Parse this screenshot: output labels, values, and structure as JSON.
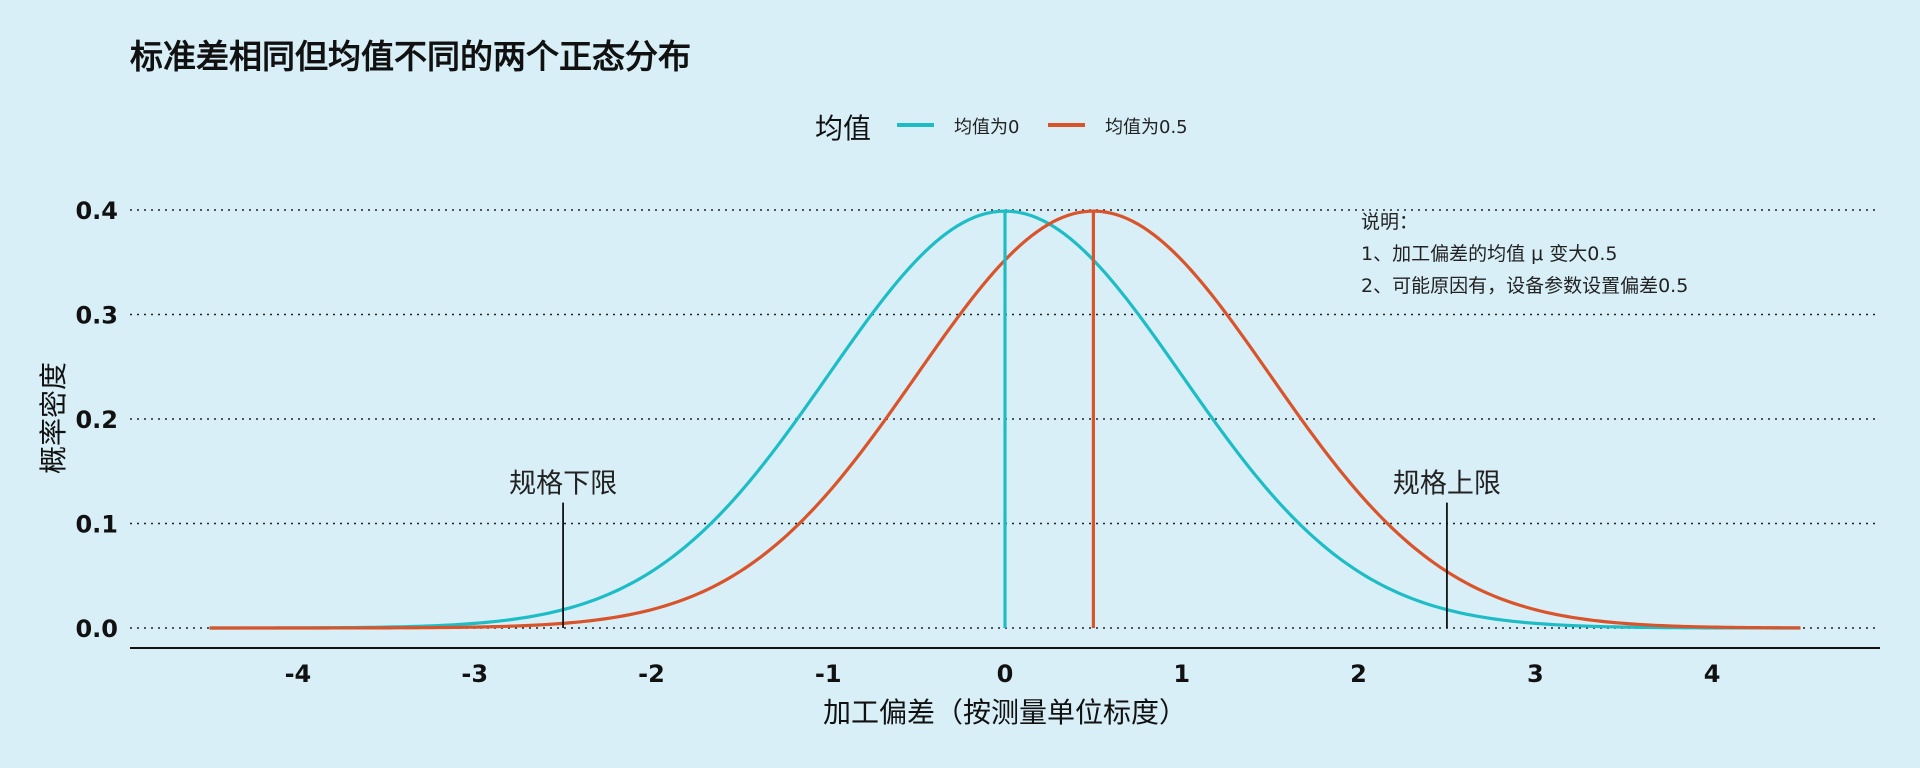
{
  "chart_data": {
    "type": "line",
    "title": "标准差相同但均值不同的两个正态分布",
    "xlabel": "加工偏差（按测量单位标度）",
    "ylabel": "概率密度",
    "xlim": [
      -4.95,
      4.95
    ],
    "ylim": [
      0,
      0.4
    ],
    "x_ticks": [
      -4,
      -3,
      -2,
      -1,
      0,
      1,
      2,
      3,
      4
    ],
    "x_tick_labels": [
      "-4",
      "-3",
      "-2",
      "-1",
      "0",
      "1",
      "2",
      "3",
      "4"
    ],
    "y_ticks": [
      0.0,
      0.1,
      0.2,
      0.3,
      0.4
    ],
    "y_tick_labels": [
      "0.0",
      "0.1",
      "0.2",
      "0.3",
      "0.4"
    ],
    "grid": "horizontal dotted",
    "legend": {
      "title": "均值",
      "position": "top"
    },
    "series": [
      {
        "name": "均值为0",
        "color": "#1ebdc6",
        "mean": 0,
        "sd": 1,
        "x": [
          -4.5,
          -4.0,
          -3.5,
          -3.0,
          -2.5,
          -2.0,
          -1.5,
          -1.0,
          -0.5,
          0.0,
          0.5,
          1.0,
          1.5,
          2.0,
          2.5,
          3.0,
          3.5,
          4.0,
          4.5
        ],
        "y": [
          1.6e-05,
          0.000134,
          0.000873,
          0.004432,
          0.017528,
          0.053991,
          0.129518,
          0.241971,
          0.352065,
          0.398942,
          0.352065,
          0.241971,
          0.129518,
          0.053991,
          0.017528,
          0.004432,
          0.000873,
          0.000134,
          1.6e-05
        ]
      },
      {
        "name": "均值为0.5",
        "color": "#d9542b",
        "mean": 0.5,
        "sd": 1,
        "x": [
          -4.5,
          -4.0,
          -3.5,
          -3.0,
          -2.5,
          -2.0,
          -1.5,
          -1.0,
          -0.5,
          0.0,
          0.5,
          1.0,
          1.5,
          2.0,
          2.5,
          3.0,
          3.5,
          4.0,
          4.5
        ],
        "y": [
          1e-06,
          1.6e-05,
          0.000134,
          0.000873,
          0.004432,
          0.017528,
          0.053991,
          0.129518,
          0.241971,
          0.352065,
          0.398942,
          0.352065,
          0.241971,
          0.129518,
          0.053991,
          0.017528,
          0.004432,
          0.000873,
          0.000134
        ]
      }
    ],
    "mean_lines": [
      {
        "x": 0,
        "color": "#1ebdc6"
      },
      {
        "x": 0.5,
        "color": "#d9542b"
      }
    ],
    "spec_limits": [
      {
        "label": "规格下限",
        "x": -2.5,
        "top": 0.12
      },
      {
        "label": "规格上限",
        "x": 2.5,
        "top": 0.12
      }
    ],
    "annotation_lines": [
      "说明：",
      "1、加工偏差的均值 μ 变大0.5",
      "2、可能原因有，设备参数设置偏差0.5"
    ]
  }
}
